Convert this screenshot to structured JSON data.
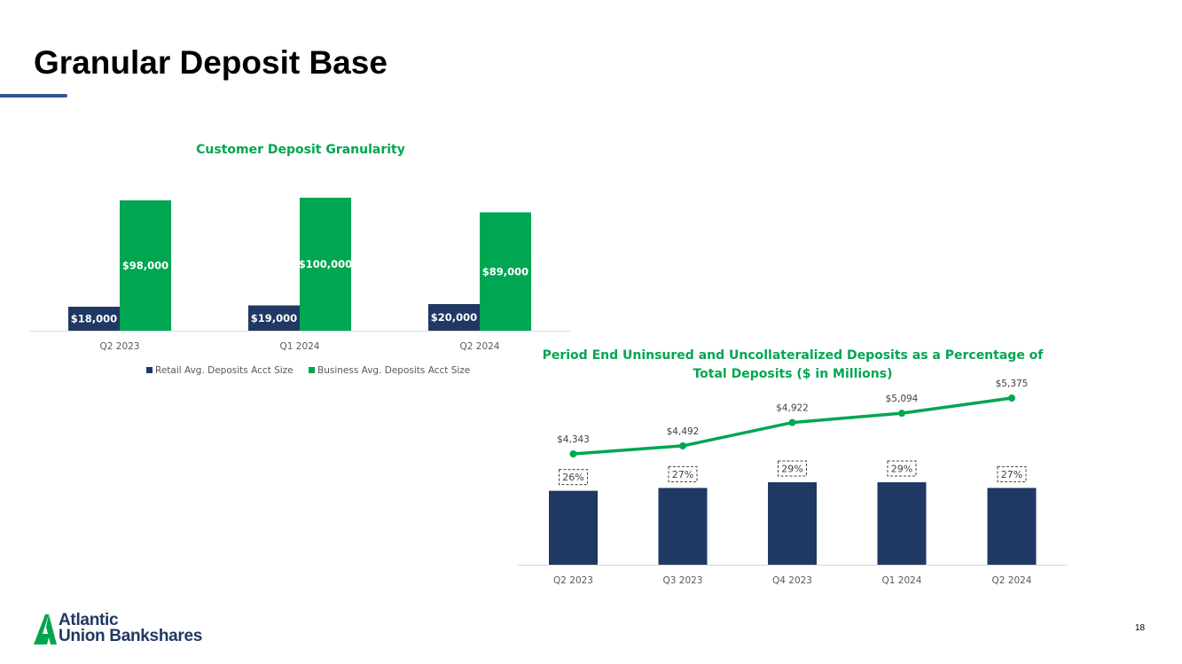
{
  "page": {
    "title": "Granular Deposit Base",
    "page_number": "18",
    "logo_line1": "Atlantic",
    "logo_line2": "Union Bankshares",
    "colors": {
      "navy": "#1f3864",
      "green": "#00a651",
      "title_rule": "#2d5a92"
    }
  },
  "chart_data": [
    {
      "type": "bar",
      "title": "Customer Deposit Granularity",
      "categories": [
        "Q2 2023",
        "Q1 2024",
        "Q2 2024"
      ],
      "series": [
        {
          "name": "Retail Avg. Deposits Acct Size",
          "values": [
            18000,
            19000,
            20000
          ],
          "labels": [
            "$18,000",
            "$19,000",
            "$20,000"
          ],
          "color": "#1f3864"
        },
        {
          "name": "Business Avg. Deposits Acct Size",
          "values": [
            98000,
            100000,
            89000
          ],
          "labels": [
            "$98,000",
            "$100,000",
            "$89,000"
          ],
          "color": "#00a651"
        }
      ],
      "ylim": [
        0,
        100000
      ],
      "grid": false,
      "legend": "bottom"
    },
    {
      "type": "bar",
      "title": "Period End Uninsured and Uncollateralized Deposits as a Percentage of Total Deposits ($ in Millions)",
      "title_lines": [
        "Period End Uninsured and Uncollateralized Deposits as a Percentage of",
        "Total Deposits ($ in Millions)"
      ],
      "categories": [
        "Q2 2023",
        "Q3 2023",
        "Q4 2023",
        "Q1 2024",
        "Q2 2024"
      ],
      "series": [
        {
          "type": "bar",
          "values": [
            26,
            27,
            29,
            29,
            27
          ],
          "labels": [
            "26%",
            "27%",
            "29%",
            "29%",
            "27%"
          ],
          "color": "#1f3864"
        },
        {
          "type": "line",
          "values": [
            4343,
            4492,
            4922,
            5094,
            5375
          ],
          "labels": [
            "$4,343",
            "$4,492",
            "$4,922",
            "$5,094",
            "$5,375"
          ],
          "color": "#00a651"
        }
      ],
      "grid": false,
      "legend": "none"
    }
  ]
}
